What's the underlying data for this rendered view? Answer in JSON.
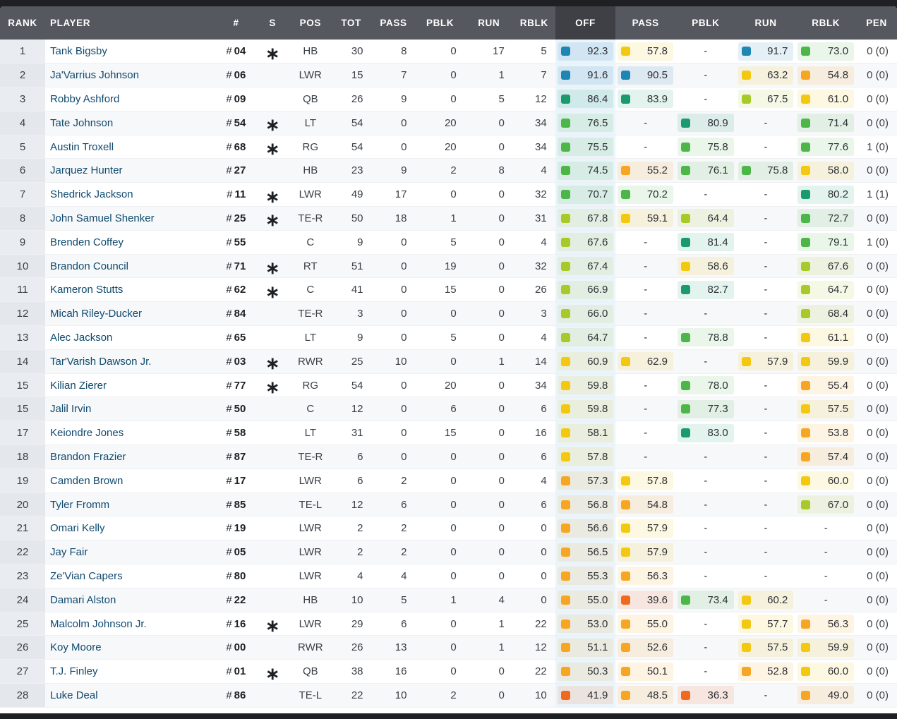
{
  "headers": {
    "rank": "RANK",
    "player": "PLAYER",
    "num": "#",
    "s": "S",
    "pos": "POS",
    "tot": "TOT",
    "pass": "PASS",
    "pblk": "PBLK",
    "run": "RUN",
    "rblk": "RBLK",
    "off": "OFF",
    "g_pass": "PASS",
    "g_pblk": "PBLK",
    "g_run": "RUN",
    "g_rblk": "RBLK",
    "pen": "PEN"
  },
  "sorted_column": "OFF",
  "starter_mark": "∗",
  "grade_colors": {
    "elite": "#1f86b3",
    "high": "#1a9a6e",
    "good": "#4cb748",
    "above_avg": "#a8c92a",
    "average": "#f2c811",
    "below_avg": "#f6a623",
    "poor": "#ef6a1f"
  },
  "rows": [
    {
      "rank": "1",
      "player": "Tank Bigsby",
      "num": "04",
      "starter": true,
      "pos": "HB",
      "tot": "30",
      "pass": "8",
      "pblk": "0",
      "run": "17",
      "rblk": "5",
      "off": "92.3",
      "g_pass": "57.8",
      "g_pblk": "-",
      "g_run": "91.7",
      "g_rblk": "73.0",
      "pen": "0 (0)"
    },
    {
      "rank": "2",
      "player": "Ja'Varrius Johnson",
      "num": "06",
      "starter": false,
      "pos": "LWR",
      "tot": "15",
      "pass": "7",
      "pblk": "0",
      "run": "1",
      "rblk": "7",
      "off": "91.6",
      "g_pass": "90.5",
      "g_pblk": "-",
      "g_run": "63.2",
      "g_rblk": "54.8",
      "pen": "0 (0)"
    },
    {
      "rank": "3",
      "player": "Robby Ashford",
      "num": "09",
      "starter": false,
      "pos": "QB",
      "tot": "26",
      "pass": "9",
      "pblk": "0",
      "run": "5",
      "rblk": "12",
      "off": "86.4",
      "g_pass": "83.9",
      "g_pblk": "-",
      "g_run": "67.5",
      "g_rblk": "61.0",
      "pen": "0 (0)"
    },
    {
      "rank": "4",
      "player": "Tate Johnson",
      "num": "54",
      "starter": true,
      "pos": "LT",
      "tot": "54",
      "pass": "0",
      "pblk": "20",
      "run": "0",
      "rblk": "34",
      "off": "76.5",
      "g_pass": "-",
      "g_pblk": "80.9",
      "g_run": "-",
      "g_rblk": "71.4",
      "pen": "0 (0)"
    },
    {
      "rank": "5",
      "player": "Austin Troxell",
      "num": "68",
      "starter": true,
      "pos": "RG",
      "tot": "54",
      "pass": "0",
      "pblk": "20",
      "run": "0",
      "rblk": "34",
      "off": "75.5",
      "g_pass": "-",
      "g_pblk": "75.8",
      "g_run": "-",
      "g_rblk": "77.6",
      "pen": "1 (0)"
    },
    {
      "rank": "6",
      "player": "Jarquez Hunter",
      "num": "27",
      "starter": false,
      "pos": "HB",
      "tot": "23",
      "pass": "9",
      "pblk": "2",
      "run": "8",
      "rblk": "4",
      "off": "74.5",
      "g_pass": "55.2",
      "g_pblk": "76.1",
      "g_run": "75.8",
      "g_rblk": "58.0",
      "pen": "0 (0)"
    },
    {
      "rank": "7",
      "player": "Shedrick Jackson",
      "num": "11",
      "starter": true,
      "pos": "LWR",
      "tot": "49",
      "pass": "17",
      "pblk": "0",
      "run": "0",
      "rblk": "32",
      "off": "70.7",
      "g_pass": "70.2",
      "g_pblk": "-",
      "g_run": "-",
      "g_rblk": "80.2",
      "pen": "1 (1)"
    },
    {
      "rank": "8",
      "player": "John Samuel Shenker",
      "num": "25",
      "starter": true,
      "pos": "TE-R",
      "tot": "50",
      "pass": "18",
      "pblk": "1",
      "run": "0",
      "rblk": "31",
      "off": "67.8",
      "g_pass": "59.1",
      "g_pblk": "64.4",
      "g_run": "-",
      "g_rblk": "72.7",
      "pen": "0 (0)"
    },
    {
      "rank": "9",
      "player": "Brenden Coffey",
      "num": "55",
      "starter": false,
      "pos": "C",
      "tot": "9",
      "pass": "0",
      "pblk": "5",
      "run": "0",
      "rblk": "4",
      "off": "67.6",
      "g_pass": "-",
      "g_pblk": "81.4",
      "g_run": "-",
      "g_rblk": "79.1",
      "pen": "1 (0)"
    },
    {
      "rank": "10",
      "player": "Brandon Council",
      "num": "71",
      "starter": true,
      "pos": "RT",
      "tot": "51",
      "pass": "0",
      "pblk": "19",
      "run": "0",
      "rblk": "32",
      "off": "67.4",
      "g_pass": "-",
      "g_pblk": "58.6",
      "g_run": "-",
      "g_rblk": "67.6",
      "pen": "0 (0)"
    },
    {
      "rank": "11",
      "player": "Kameron Stutts",
      "num": "62",
      "starter": true,
      "pos": "C",
      "tot": "41",
      "pass": "0",
      "pblk": "15",
      "run": "0",
      "rblk": "26",
      "off": "66.9",
      "g_pass": "-",
      "g_pblk": "82.7",
      "g_run": "-",
      "g_rblk": "64.7",
      "pen": "0 (0)"
    },
    {
      "rank": "12",
      "player": "Micah Riley-Ducker",
      "num": "84",
      "starter": false,
      "pos": "TE-R",
      "tot": "3",
      "pass": "0",
      "pblk": "0",
      "run": "0",
      "rblk": "3",
      "off": "66.0",
      "g_pass": "-",
      "g_pblk": "-",
      "g_run": "-",
      "g_rblk": "68.4",
      "pen": "0 (0)"
    },
    {
      "rank": "13",
      "player": "Alec Jackson",
      "num": "65",
      "starter": false,
      "pos": "LT",
      "tot": "9",
      "pass": "0",
      "pblk": "5",
      "run": "0",
      "rblk": "4",
      "off": "64.7",
      "g_pass": "-",
      "g_pblk": "78.8",
      "g_run": "-",
      "g_rblk": "61.1",
      "pen": "0 (0)"
    },
    {
      "rank": "14",
      "player": "Tar'Varish Dawson Jr.",
      "num": "03",
      "starter": true,
      "pos": "RWR",
      "tot": "25",
      "pass": "10",
      "pblk": "0",
      "run": "1",
      "rblk": "14",
      "off": "60.9",
      "g_pass": "62.9",
      "g_pblk": "-",
      "g_run": "57.9",
      "g_rblk": "59.9",
      "pen": "0 (0)"
    },
    {
      "rank": "15",
      "player": "Kilian Zierer",
      "num": "77",
      "starter": true,
      "pos": "RG",
      "tot": "54",
      "pass": "0",
      "pblk": "20",
      "run": "0",
      "rblk": "34",
      "off": "59.8",
      "g_pass": "-",
      "g_pblk": "78.0",
      "g_run": "-",
      "g_rblk": "55.4",
      "pen": "0 (0)"
    },
    {
      "rank": "15",
      "player": "Jalil Irvin",
      "num": "50",
      "starter": false,
      "pos": "C",
      "tot": "12",
      "pass": "0",
      "pblk": "6",
      "run": "0",
      "rblk": "6",
      "off": "59.8",
      "g_pass": "-",
      "g_pblk": "77.3",
      "g_run": "-",
      "g_rblk": "57.5",
      "pen": "0 (0)"
    },
    {
      "rank": "17",
      "player": "Keiondre Jones",
      "num": "58",
      "starter": false,
      "pos": "LT",
      "tot": "31",
      "pass": "0",
      "pblk": "15",
      "run": "0",
      "rblk": "16",
      "off": "58.1",
      "g_pass": "-",
      "g_pblk": "83.0",
      "g_run": "-",
      "g_rblk": "53.8",
      "pen": "0 (0)"
    },
    {
      "rank": "18",
      "player": "Brandon Frazier",
      "num": "87",
      "starter": false,
      "pos": "TE-R",
      "tot": "6",
      "pass": "0",
      "pblk": "0",
      "run": "0",
      "rblk": "6",
      "off": "57.8",
      "g_pass": "-",
      "g_pblk": "-",
      "g_run": "-",
      "g_rblk": "57.4",
      "pen": "0 (0)"
    },
    {
      "rank": "19",
      "player": "Camden Brown",
      "num": "17",
      "starter": false,
      "pos": "LWR",
      "tot": "6",
      "pass": "2",
      "pblk": "0",
      "run": "0",
      "rblk": "4",
      "off": "57.3",
      "g_pass": "57.8",
      "g_pblk": "-",
      "g_run": "-",
      "g_rblk": "60.0",
      "pen": "0 (0)"
    },
    {
      "rank": "20",
      "player": "Tyler Fromm",
      "num": "85",
      "starter": false,
      "pos": "TE-L",
      "tot": "12",
      "pass": "6",
      "pblk": "0",
      "run": "0",
      "rblk": "6",
      "off": "56.8",
      "g_pass": "54.8",
      "g_pblk": "-",
      "g_run": "-",
      "g_rblk": "67.0",
      "pen": "0 (0)"
    },
    {
      "rank": "21",
      "player": "Omari Kelly",
      "num": "19",
      "starter": false,
      "pos": "LWR",
      "tot": "2",
      "pass": "2",
      "pblk": "0",
      "run": "0",
      "rblk": "0",
      "off": "56.6",
      "g_pass": "57.9",
      "g_pblk": "-",
      "g_run": "-",
      "g_rblk": "-",
      "pen": "0 (0)"
    },
    {
      "rank": "22",
      "player": "Jay Fair",
      "num": "05",
      "starter": false,
      "pos": "LWR",
      "tot": "2",
      "pass": "2",
      "pblk": "0",
      "run": "0",
      "rblk": "0",
      "off": "56.5",
      "g_pass": "57.9",
      "g_pblk": "-",
      "g_run": "-",
      "g_rblk": "-",
      "pen": "0 (0)"
    },
    {
      "rank": "23",
      "player": "Ze'Vian Capers",
      "num": "80",
      "starter": false,
      "pos": "LWR",
      "tot": "4",
      "pass": "4",
      "pblk": "0",
      "run": "0",
      "rblk": "0",
      "off": "55.3",
      "g_pass": "56.3",
      "g_pblk": "-",
      "g_run": "-",
      "g_rblk": "-",
      "pen": "0 (0)"
    },
    {
      "rank": "24",
      "player": "Damari Alston",
      "num": "22",
      "starter": false,
      "pos": "HB",
      "tot": "10",
      "pass": "5",
      "pblk": "1",
      "run": "4",
      "rblk": "0",
      "off": "55.0",
      "g_pass": "39.6",
      "g_pblk": "73.4",
      "g_run": "60.2",
      "g_rblk": "-",
      "pen": "0 (0)"
    },
    {
      "rank": "25",
      "player": "Malcolm Johnson Jr.",
      "num": "16",
      "starter": true,
      "pos": "LWR",
      "tot": "29",
      "pass": "6",
      "pblk": "0",
      "run": "1",
      "rblk": "22",
      "off": "53.0",
      "g_pass": "55.0",
      "g_pblk": "-",
      "g_run": "57.7",
      "g_rblk": "56.3",
      "pen": "0 (0)"
    },
    {
      "rank": "26",
      "player": "Koy Moore",
      "num": "00",
      "starter": false,
      "pos": "RWR",
      "tot": "26",
      "pass": "13",
      "pblk": "0",
      "run": "1",
      "rblk": "12",
      "off": "51.1",
      "g_pass": "52.6",
      "g_pblk": "-",
      "g_run": "57.5",
      "g_rblk": "59.9",
      "pen": "0 (0)"
    },
    {
      "rank": "27",
      "player": "T.J. Finley",
      "num": "01",
      "starter": true,
      "pos": "QB",
      "tot": "38",
      "pass": "16",
      "pblk": "0",
      "run": "0",
      "rblk": "22",
      "off": "50.3",
      "g_pass": "50.1",
      "g_pblk": "-",
      "g_run": "52.8",
      "g_rblk": "60.0",
      "pen": "0 (0)"
    },
    {
      "rank": "28",
      "player": "Luke Deal",
      "num": "86",
      "starter": false,
      "pos": "TE-L",
      "tot": "22",
      "pass": "10",
      "pblk": "2",
      "run": "0",
      "rblk": "10",
      "off": "41.9",
      "g_pass": "48.5",
      "g_pblk": "36.3",
      "g_run": "-",
      "g_rblk": "49.0",
      "pen": "0 (0)"
    }
  ]
}
